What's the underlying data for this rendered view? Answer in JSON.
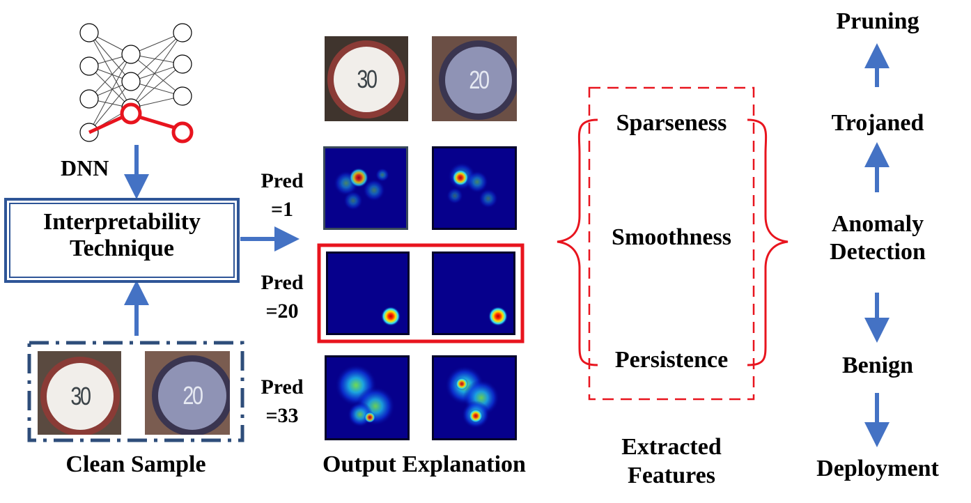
{
  "nodes": {
    "dnn": "DNN",
    "interpretability": [
      "Interpretability",
      "Technique"
    ],
    "clean_sample": "Clean Sample",
    "output_explanation": "Output Explanation",
    "extracted_features": [
      "Extracted",
      "Features"
    ],
    "anomaly_detection": [
      "Anomaly",
      "Detection"
    ],
    "trojaned": "Trojaned",
    "benign": "Benign",
    "pruning": "Pruning",
    "deployment": "Deployment"
  },
  "predictions": [
    [
      "Pred",
      "=1"
    ],
    [
      "Pred",
      "=20"
    ],
    [
      "Pred",
      "=33"
    ]
  ],
  "features": [
    "Sparseness",
    "Smoothness",
    "Persistence"
  ],
  "sign_numbers": [
    "30",
    "20"
  ],
  "colors": {
    "arrow": "#4472c4",
    "box_border": "#2e5597",
    "highlight": "#e8141e",
    "heatmap_bg": "#06008c"
  }
}
